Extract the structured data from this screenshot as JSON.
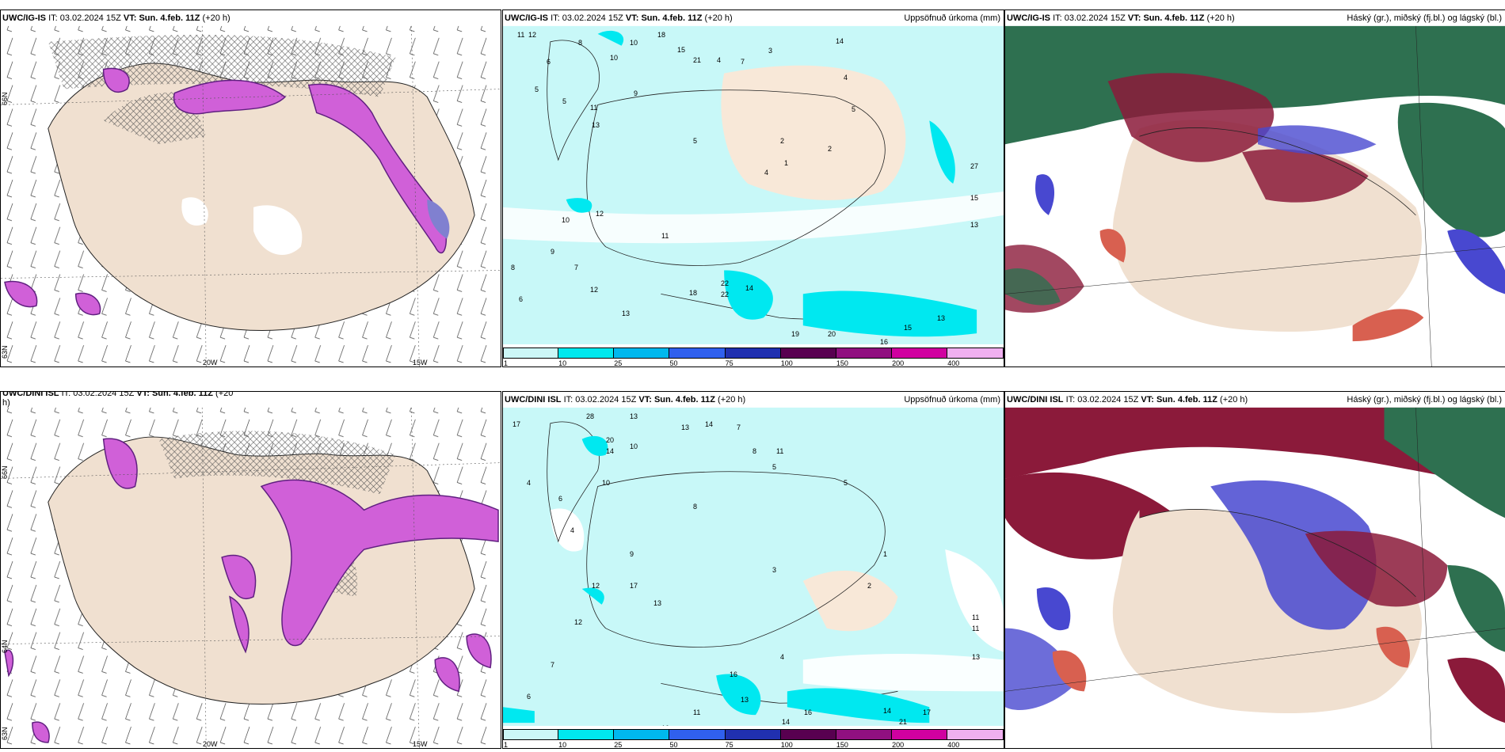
{
  "panels": {
    "p1": {
      "model": "UWC/IG-IS",
      "it_label": "IT:",
      "it": "03.02.2024 15Z",
      "vt_label": "VT:",
      "vt": "Sun. 4.feb. 11Z",
      "lead": "(+20 h)",
      "right": ""
    },
    "p2": {
      "model": "UWC/IG-IS",
      "it_label": "IT:",
      "it": "03.02.2024 15Z",
      "vt_label": "VT:",
      "vt": "Sun. 4.feb. 11Z",
      "lead": "(+20 h)",
      "right": "Uppsöfnuð úrkoma (mm)"
    },
    "p3": {
      "model": "UWC/IG-IS",
      "it_label": "IT:",
      "it": "03.02.2024 15Z",
      "vt_label": "VT:",
      "vt": "Sun. 4.feb. 11Z",
      "lead": "(+20 h)",
      "right": "Háský (gr.), miðský (fj.bl.) og lágský (bl.)"
    },
    "p4": {
      "model": "UWC/DINI ISL",
      "it_label": "IT:",
      "it": "03.02.2024 15Z",
      "vt_label": "VT:",
      "vt": "Sun. 4.feb. 11Z",
      "lead": "(+20",
      "lead2": "h)",
      "right": ""
    },
    "p5": {
      "model": "UWC/DINI ISL",
      "it_label": "IT:",
      "it": "03.02.2024 15Z",
      "vt_label": "VT:",
      "vt": "Sun. 4.feb. 11Z",
      "lead": "(+20 h)",
      "right": "Uppsöfnuð úrkoma (mm)"
    },
    "p6": {
      "model": "UWC/DINI ISL",
      "it_label": "IT:",
      "it": "03.02.2024 15Z",
      "vt_label": "VT:",
      "vt": "Sun. 4.feb. 11Z",
      "lead": "(+20 h)",
      "right": "Háský (gr.), miðský (fj.bl.) og lágský (bl.)"
    }
  },
  "axis": {
    "lon1": "20W",
    "lon2": "15W",
    "lat1": "66N",
    "lat2": "64N",
    "lat3": "63N"
  },
  "colorbar": {
    "ticks": [
      "1",
      "10",
      "25",
      "50",
      "75",
      "100",
      "150",
      "200",
      "400"
    ],
    "colors": [
      "#ccf7f7",
      "#00e8ee",
      "#00b8ee",
      "#3060ee",
      "#2030b0",
      "#580050",
      "#901080",
      "#d000a0",
      "#f0b0f0"
    ]
  },
  "precip_top": [
    "11",
    "12",
    "8",
    "10",
    "18",
    "6",
    "10",
    "15",
    "21",
    "4",
    "7",
    "3",
    "5",
    "5",
    "11",
    "9",
    "14",
    "4",
    "13",
    "2",
    "1",
    "5",
    "2",
    "27",
    "15",
    "13",
    "22",
    "22",
    "18",
    "14",
    "12",
    "13",
    "19",
    "20",
    "16",
    "15",
    "13",
    "12",
    "11",
    "10",
    "9",
    "8",
    "7",
    "6",
    "5",
    "4"
  ],
  "precip_bottom": [
    "17",
    "28",
    "13",
    "13",
    "14",
    "20",
    "10",
    "7",
    "8",
    "5",
    "14",
    "11",
    "4",
    "10",
    "6",
    "4",
    "17",
    "12",
    "13",
    "16",
    "13",
    "14",
    "21",
    "17",
    "14",
    "12",
    "11",
    "10",
    "9",
    "8",
    "7",
    "6",
    "5",
    "4",
    "3",
    "2",
    "1",
    "11",
    "11",
    "13",
    "16"
  ],
  "colors": {
    "land": "#f0e0d0",
    "precip_light": "#c8f8f8",
    "precip_mid": "#00e8f0",
    "pink": "#d060d8",
    "deep_purple": "#602080",
    "cloud_green": "#2e7050",
    "cloud_red": "#8b1a3a",
    "cloud_blue": "#4848d0"
  }
}
